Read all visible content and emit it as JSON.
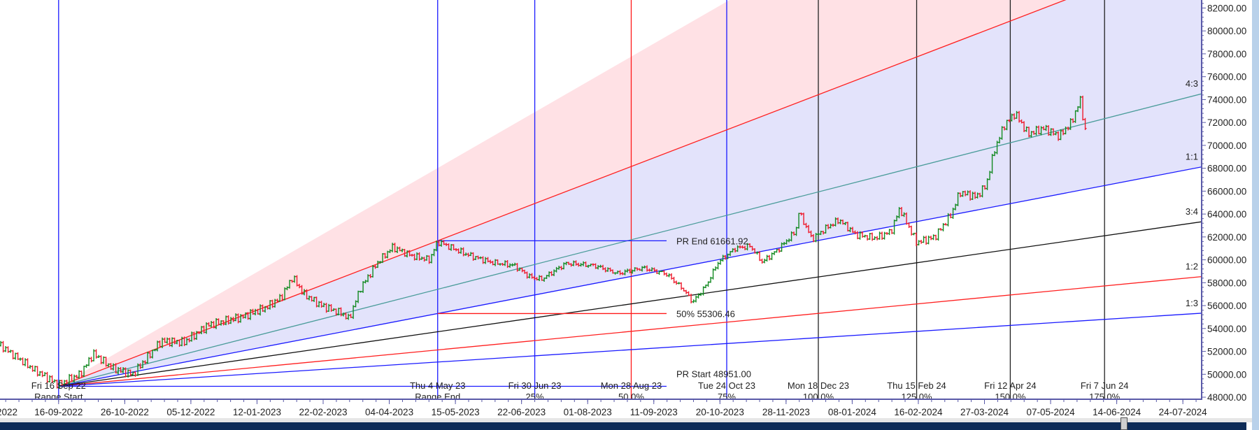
{
  "chart_data": {
    "type": "line",
    "title": "",
    "xlabel": "",
    "ylabel": "",
    "ylim": [
      47820,
      82700
    ],
    "grid": false,
    "x_ticks": [
      "16-09-2022",
      "26-10-2022",
      "05-12-2022",
      "12-01-2023",
      "22-02-2023",
      "04-04-2023",
      "15-05-2023",
      "22-06-2023",
      "01-08-2023",
      "11-09-2023",
      "20-10-2023",
      "28-11-2023",
      "08-01-2024",
      "16-02-2024",
      "27-03-2024",
      "07-05-2024",
      "14-06-2024",
      "24-07-2024"
    ],
    "x_tick_partial_left": "2022",
    "y_ticks": [
      "82000.00",
      "80000.00",
      "78000.00",
      "76000.00",
      "74000.00",
      "72000.00",
      "70000.00",
      "68000.00",
      "66000.00",
      "64000.00",
      "62000.00",
      "60000.00",
      "58000.00",
      "56000.00",
      "54000.00",
      "52000.00",
      "50000.00",
      "48000.00"
    ],
    "colors": {
      "up": "#138a22",
      "down": "#ee1c2e",
      "fill_pink": "#ffe1e5",
      "fill_lavender": "#e3e3fb"
    },
    "series": [
      {
        "style": "ohlc-bars",
        "points": [
          [
            "2022-08-12",
            52500
          ],
          [
            "2022-08-31",
            50500
          ],
          [
            "2022-09-16",
            49100
          ],
          [
            "2022-09-29",
            50000
          ],
          [
            "2022-10-07",
            51800
          ],
          [
            "2022-10-19",
            50500
          ],
          [
            "2022-10-31",
            50000
          ],
          [
            "2022-11-17",
            52900
          ],
          [
            "2022-12-01",
            52800
          ],
          [
            "2022-12-15",
            54300
          ],
          [
            "2023-01-03",
            55000
          ],
          [
            "2023-01-17",
            55800
          ],
          [
            "2023-01-27",
            56700
          ],
          [
            "2023-02-03",
            58500
          ],
          [
            "2023-02-10",
            57000
          ],
          [
            "2023-02-21",
            56000
          ],
          [
            "2023-03-06",
            55300
          ],
          [
            "2023-03-10",
            54800
          ],
          [
            "2023-03-17",
            57500
          ],
          [
            "2023-03-28",
            59800
          ],
          [
            "2023-04-06",
            61100
          ],
          [
            "2023-04-19",
            60300
          ],
          [
            "2023-04-29",
            60000
          ],
          [
            "2023-05-04",
            61600
          ],
          [
            "2023-05-21",
            60500
          ],
          [
            "2023-06-04",
            59800
          ],
          [
            "2023-06-18",
            59500
          ],
          [
            "2023-06-27",
            58500
          ],
          [
            "2023-07-04",
            58300
          ],
          [
            "2023-07-19",
            59700
          ],
          [
            "2023-08-05",
            59500
          ],
          [
            "2023-08-20",
            58800
          ],
          [
            "2023-09-04",
            59300
          ],
          [
            "2023-09-18",
            58800
          ],
          [
            "2023-09-28",
            57500
          ],
          [
            "2023-10-04",
            56300
          ],
          [
            "2023-10-12",
            57800
          ],
          [
            "2023-10-19",
            59800
          ],
          [
            "2023-10-29",
            61000
          ],
          [
            "2023-11-07",
            61200
          ],
          [
            "2023-11-14",
            59800
          ],
          [
            "2023-11-24",
            61000
          ],
          [
            "2023-12-04",
            62500
          ],
          [
            "2023-12-06",
            64200
          ],
          [
            "2023-12-14",
            61800
          ],
          [
            "2023-12-23",
            62800
          ],
          [
            "2023-12-31",
            63500
          ],
          [
            "2024-01-10",
            62200
          ],
          [
            "2024-01-22",
            61900
          ],
          [
            "2024-01-31",
            62500
          ],
          [
            "2024-02-05",
            64500
          ],
          [
            "2024-02-10",
            63000
          ],
          [
            "2024-02-15",
            61500
          ],
          [
            "2024-02-26",
            62000
          ],
          [
            "2024-03-07",
            64000
          ],
          [
            "2024-03-12",
            65900
          ],
          [
            "2024-03-22",
            65500
          ],
          [
            "2024-03-28",
            66500
          ],
          [
            "2024-04-02",
            69500
          ],
          [
            "2024-04-08",
            71700
          ],
          [
            "2024-04-15",
            72800
          ],
          [
            "2024-04-23",
            71000
          ],
          [
            "2024-05-03",
            71500
          ],
          [
            "2024-05-12",
            70800
          ],
          [
            "2024-05-19",
            72000
          ],
          [
            "2024-05-24",
            74000
          ],
          [
            "2024-05-27",
            71200
          ]
        ]
      }
    ],
    "price_range": {
      "start_date": "2022-09-16",
      "end_date": "2023-05-04",
      "pr_start_value": 48951.0,
      "pr_end_value": 61661.92,
      "pr_end_label": "PR End 61661.92",
      "mid_label": "50% 55306.46",
      "pr_start_label": "PR Start 48951.00",
      "line_colors": {
        "pr_end": "#1a1aff",
        "mid": "#ff1a1a",
        "pr_start": "#1a1aff"
      }
    },
    "gann_fan": [
      {
        "ratio": 3,
        "label": "",
        "color": "none"
      },
      {
        "ratio": 2,
        "label": "",
        "color": "#ff2020"
      },
      {
        "ratio": 1.3333,
        "label": "4:3",
        "color": "#4a9c9a"
      },
      {
        "ratio": 1,
        "label": "1:1",
        "color": "#1a1aff"
      },
      {
        "ratio": 0.75,
        "label": "3:4",
        "color": "#111111"
      },
      {
        "ratio": 0.5,
        "label": "1:2",
        "color": "#ff2020"
      },
      {
        "ratio": 0.3333,
        "label": "1:3",
        "color": "#1a1aff"
      }
    ],
    "time_markers": [
      {
        "date": "2022-09-16",
        "date_label": "Fri 16 Sep 22",
        "sub_label": "Range Start",
        "color": "#1a1aff"
      },
      {
        "date": "2023-05-04",
        "date_label": "Thu 4 May 23",
        "sub_label": "Range End",
        "color": "#1a1aff"
      },
      {
        "date": "2023-06-30",
        "date_label": "Fri 30 Jun 23",
        "sub_label": "25%",
        "color": "#1a1aff"
      },
      {
        "date": "2023-08-28",
        "date_label": "Mon 28 Aug 23",
        "sub_label": "50.0%",
        "color": "#ff1a1a"
      },
      {
        "date": "2023-10-24",
        "date_label": "Tue 24 Oct 23",
        "sub_label": "75%",
        "color": "#1a1aff"
      },
      {
        "date": "2023-12-18",
        "date_label": "Mon 18 Dec 23",
        "sub_label": "100.0%",
        "color": "#222222"
      },
      {
        "date": "2024-02-15",
        "date_label": "Thu 15 Feb 24",
        "sub_label": "125.0%",
        "color": "#222222"
      },
      {
        "date": "2024-04-12",
        "date_label": "Fri 12 Apr 24",
        "sub_label": "150.0%",
        "color": "#222222"
      },
      {
        "date": "2024-06-07",
        "date_label": "Fri 7 Jun 24",
        "sub_label": "175.0%",
        "color": "#222222"
      }
    ]
  }
}
